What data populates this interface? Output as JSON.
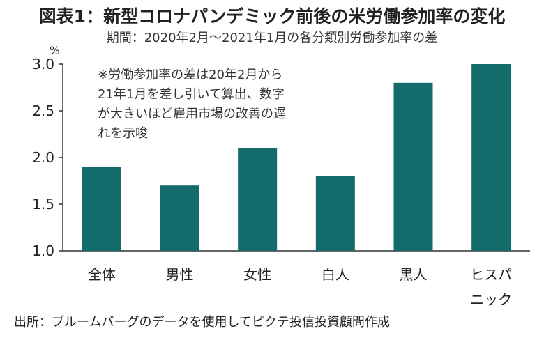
{
  "chart_data": {
    "type": "bar",
    "title": "図表1：新型コロナパンデミック前後の米労働参加率の変化",
    "subtitle": "期間：2020年2月～2021年1月の各分類別労働参加率の差",
    "unit": "%",
    "categories": [
      {
        "lines": [
          "全体"
        ]
      },
      {
        "lines": [
          "男性"
        ]
      },
      {
        "lines": [
          "女性"
        ]
      },
      {
        "lines": [
          "白人"
        ]
      },
      {
        "lines": [
          "黒人"
        ]
      },
      {
        "lines": [
          "ヒスパ",
          "ニック"
        ]
      }
    ],
    "values": [
      1.9,
      1.7,
      2.1,
      1.8,
      2.8,
      3.0
    ],
    "ylim": [
      1.0,
      3.0
    ],
    "yticks": [
      "1.0",
      "1.5",
      "2.0",
      "2.5",
      "3.0"
    ],
    "grid": false,
    "bar_color": "#136b6b",
    "note_lines": [
      "※労働参加率の差は20年2月から",
      "21年1月を差し引いて算出、数字",
      "が大きいほど雇用市場の改善の遅",
      "れを示唆"
    ]
  },
  "source": "出所：ブルームバーグのデータを使用してピクテ投信投資顧問作成"
}
